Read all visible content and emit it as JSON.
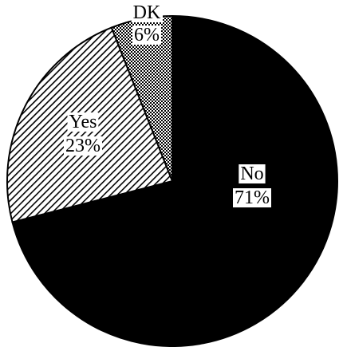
{
  "chart_data": {
    "type": "pie",
    "labels": [
      "No",
      "Yes",
      "DK"
    ],
    "values": [
      71,
      23,
      6
    ],
    "value_labels": [
      "71%",
      "23%",
      "6%"
    ],
    "colors": [
      "#000000",
      "#ffffff",
      "#ffffff"
    ],
    "patterns": [
      "solid",
      "diagonal-hatch",
      "crosshatch"
    ],
    "title": "",
    "legend": "none"
  }
}
